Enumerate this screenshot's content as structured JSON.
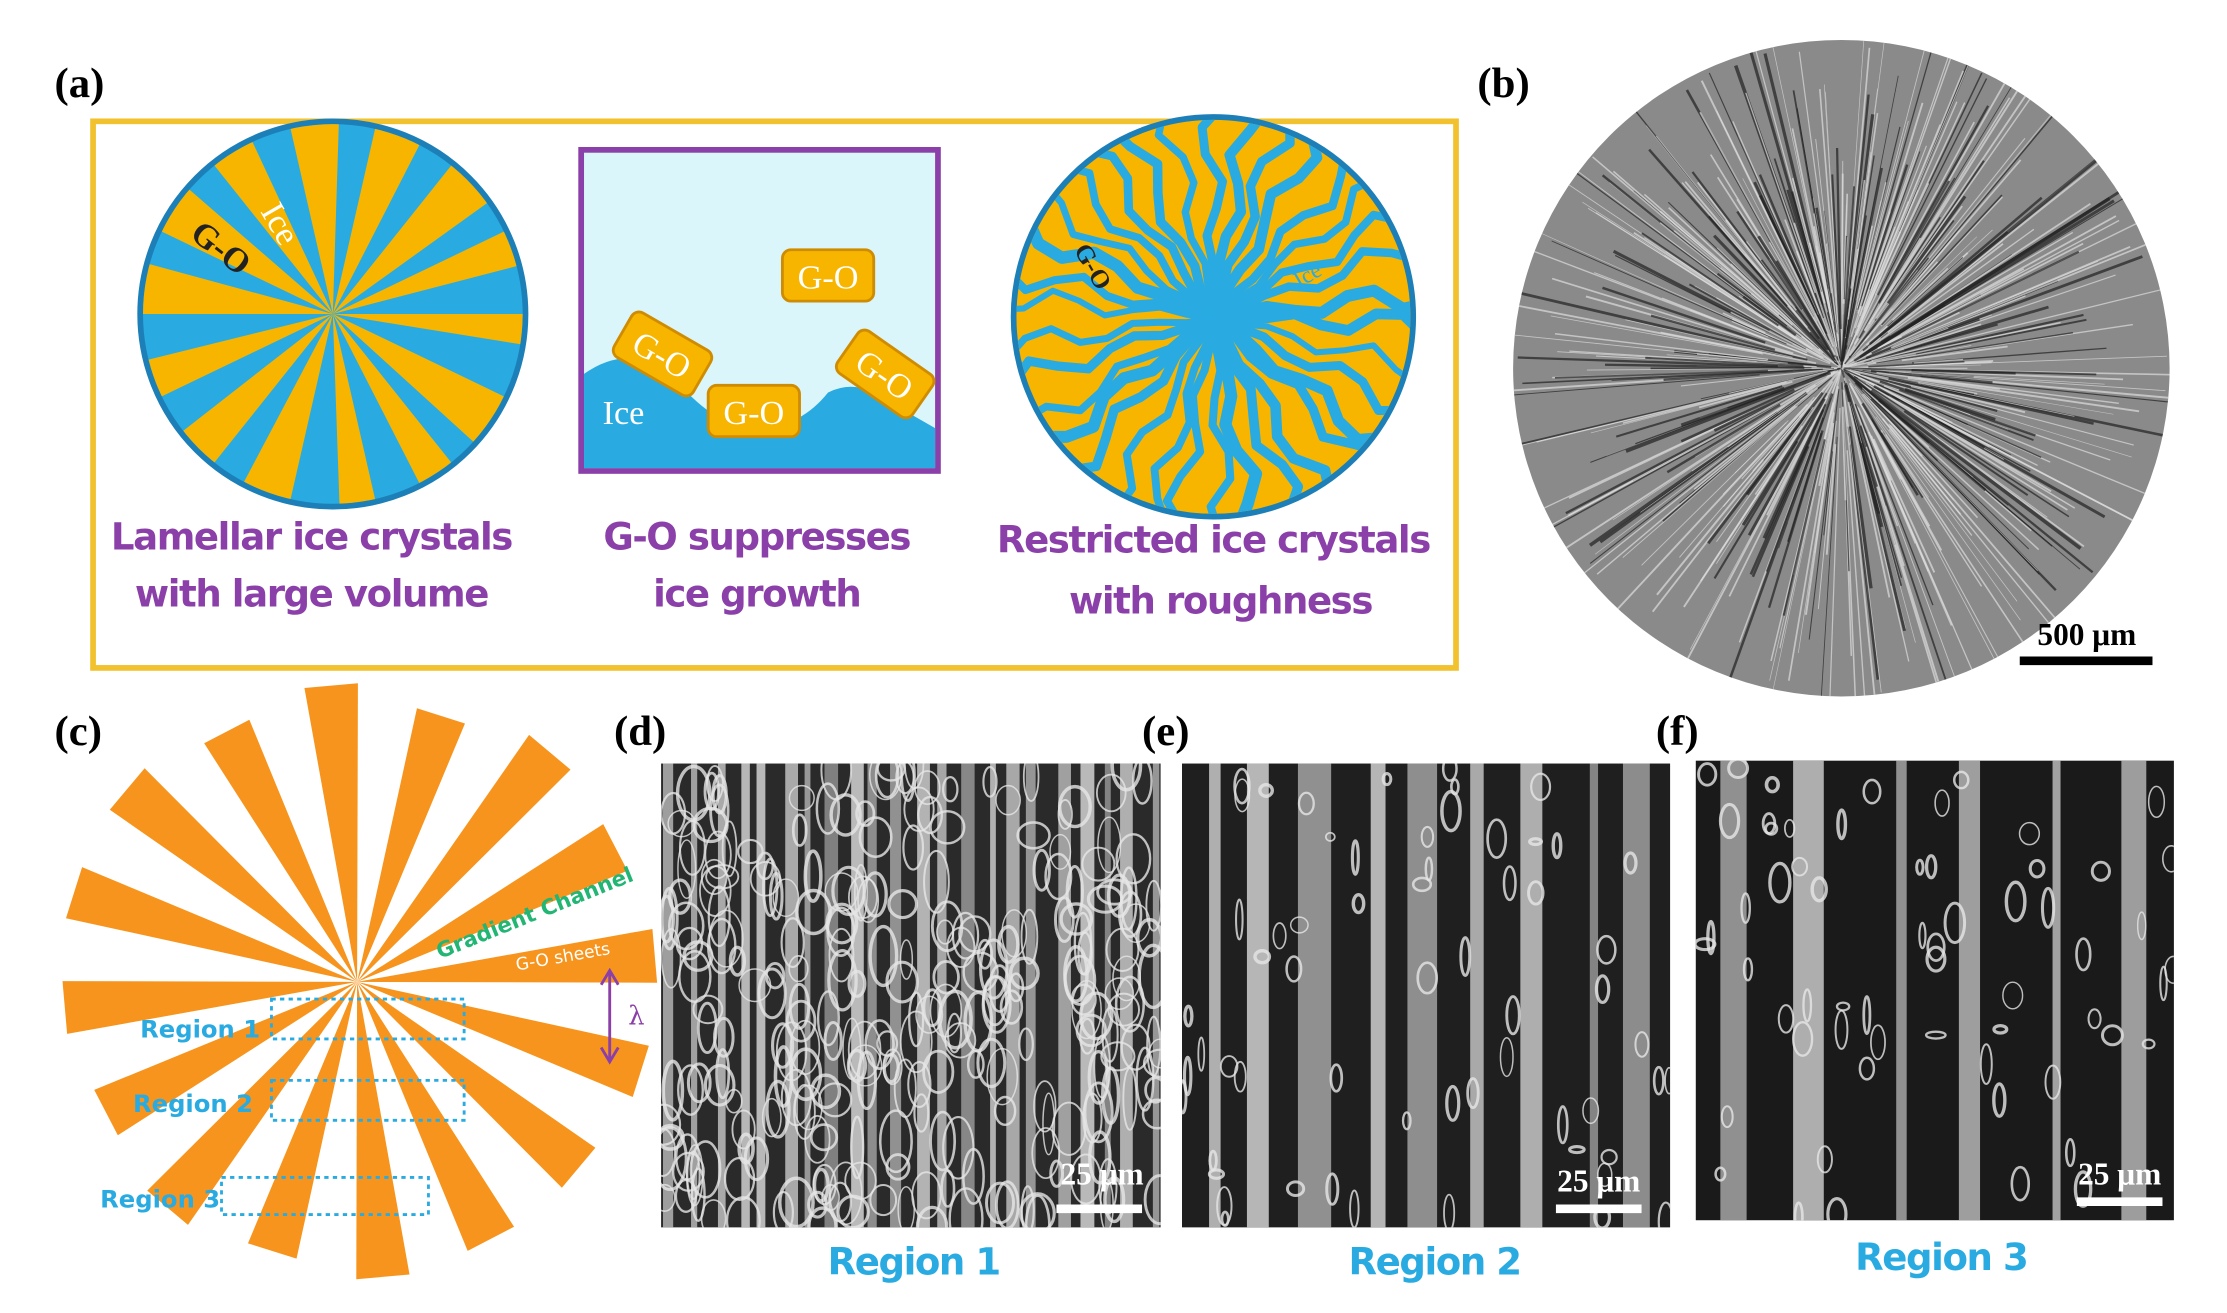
{
  "panels": {
    "a": {
      "label": "(a)",
      "scheme_1": {
        "ice": "Ice",
        "go": "G-O",
        "caption": [
          "Lamellar ice crystals",
          "with large volume"
        ]
      },
      "scheme_2": {
        "go_tiles": [
          "G-O",
          "G-O",
          "G-O",
          "G-O"
        ],
        "ice": "Ice",
        "caption": [
          "G-O suppresses",
          "ice growth"
        ]
      },
      "scheme_3": {
        "go": "G-O",
        "ice": "Ice",
        "caption": [
          "Restricted ice crystals",
          "with roughness"
        ]
      }
    },
    "b": {
      "label": "(b)",
      "scale_bar": "500 μm"
    },
    "c": {
      "label": "(c)",
      "channel": "Gradient Channel",
      "sheets": "G-O sheets",
      "wavelength": "λ",
      "regions": [
        "Region 1",
        "Region 2",
        "Region 3"
      ]
    },
    "d": {
      "label": "(d)",
      "scale_bar": "25 μm",
      "caption": "Region 1"
    },
    "e": {
      "label": "(e)",
      "scale_bar": "25 μm",
      "caption": "Region 2"
    },
    "f": {
      "label": "(f)",
      "scale_bar": "25 μm",
      "caption": "Region 3"
    }
  }
}
